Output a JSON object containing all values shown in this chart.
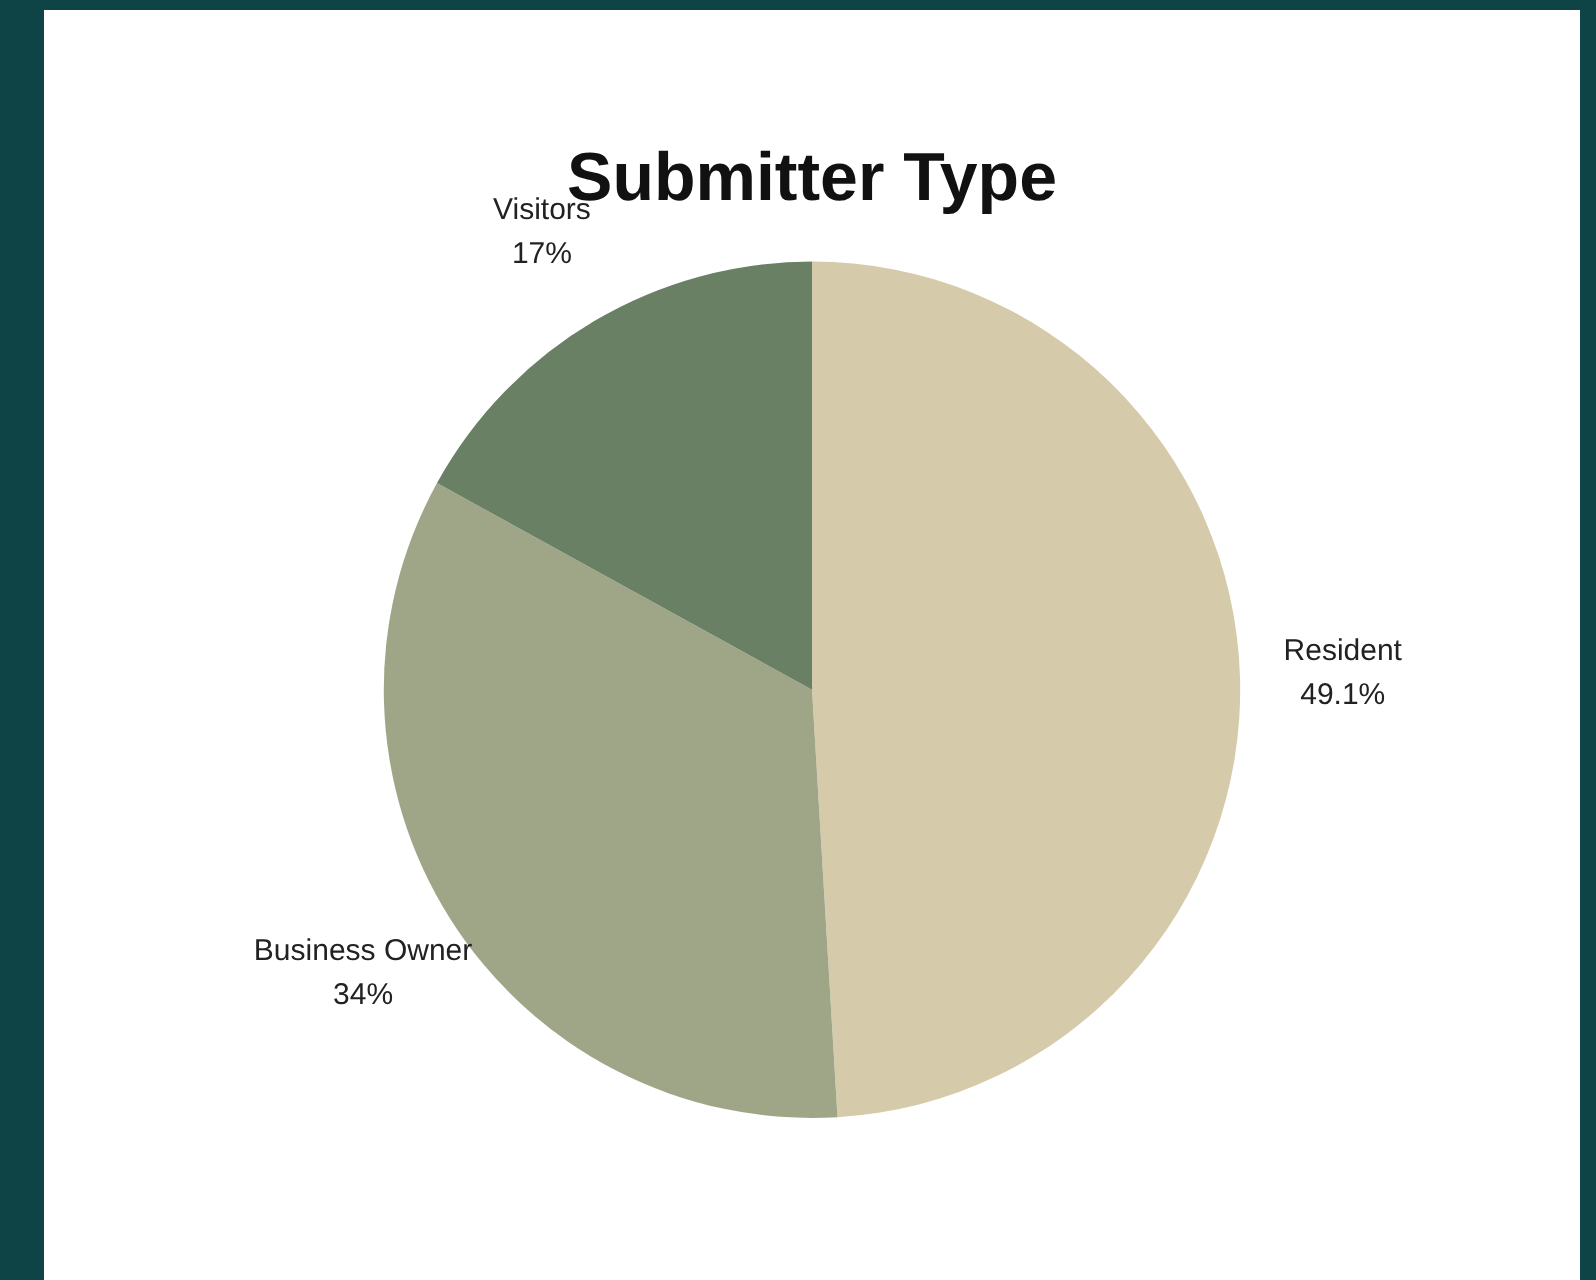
{
  "chart_data": {
    "type": "pie",
    "title": "Submitter Type",
    "categories": [
      "Resident",
      "Business Owner",
      "Visitors"
    ],
    "values": [
      49.1,
      34,
      17
    ],
    "colors": [
      "#d5cbab",
      "#9fa687",
      "#6a8065"
    ],
    "value_labels": [
      "49.1%",
      "34%",
      "17%"
    ],
    "legend": false
  }
}
